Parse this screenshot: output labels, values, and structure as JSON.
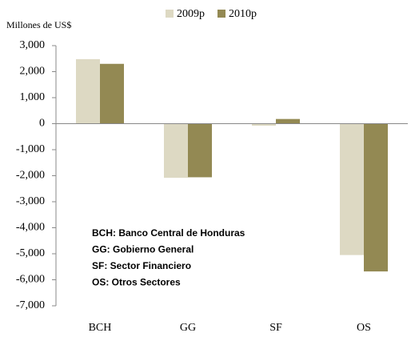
{
  "chart_data": {
    "type": "bar",
    "y_axis_label": "Millones de US$",
    "categories": [
      "BCH",
      "GG",
      "SF",
      "OS"
    ],
    "series": [
      {
        "name": "2009p",
        "color": "#ddd9c3",
        "values": [
          2480,
          -2080,
          -80,
          -5050
        ]
      },
      {
        "name": "2010p",
        "color": "#938953",
        "values": [
          2300,
          -2060,
          180,
          -5680
        ]
      }
    ],
    "ylim": [
      -7000,
      3000
    ],
    "yticks": [
      {
        "value": 3000,
        "label": "3,000"
      },
      {
        "value": 2000,
        "label": "2,000"
      },
      {
        "value": 1000,
        "label": "1,000"
      },
      0,
      {
        "value": -1000,
        "label": "-1,000"
      },
      {
        "value": -2000,
        "label": "-2,000"
      },
      {
        "value": -3000,
        "label": "-3,000"
      },
      {
        "value": -4000,
        "label": "-4,000"
      },
      {
        "value": -5000,
        "label": "-5,000"
      },
      {
        "value": -6000,
        "label": "-6,000"
      },
      {
        "value": -7000,
        "label": "-7,000"
      }
    ],
    "legend_position": "top",
    "annotations": [
      "BCH: Banco Central de Honduras",
      "GG: Gobierno General",
      "SF: Sector Financiero",
      "OS: Otros Sectores"
    ]
  }
}
